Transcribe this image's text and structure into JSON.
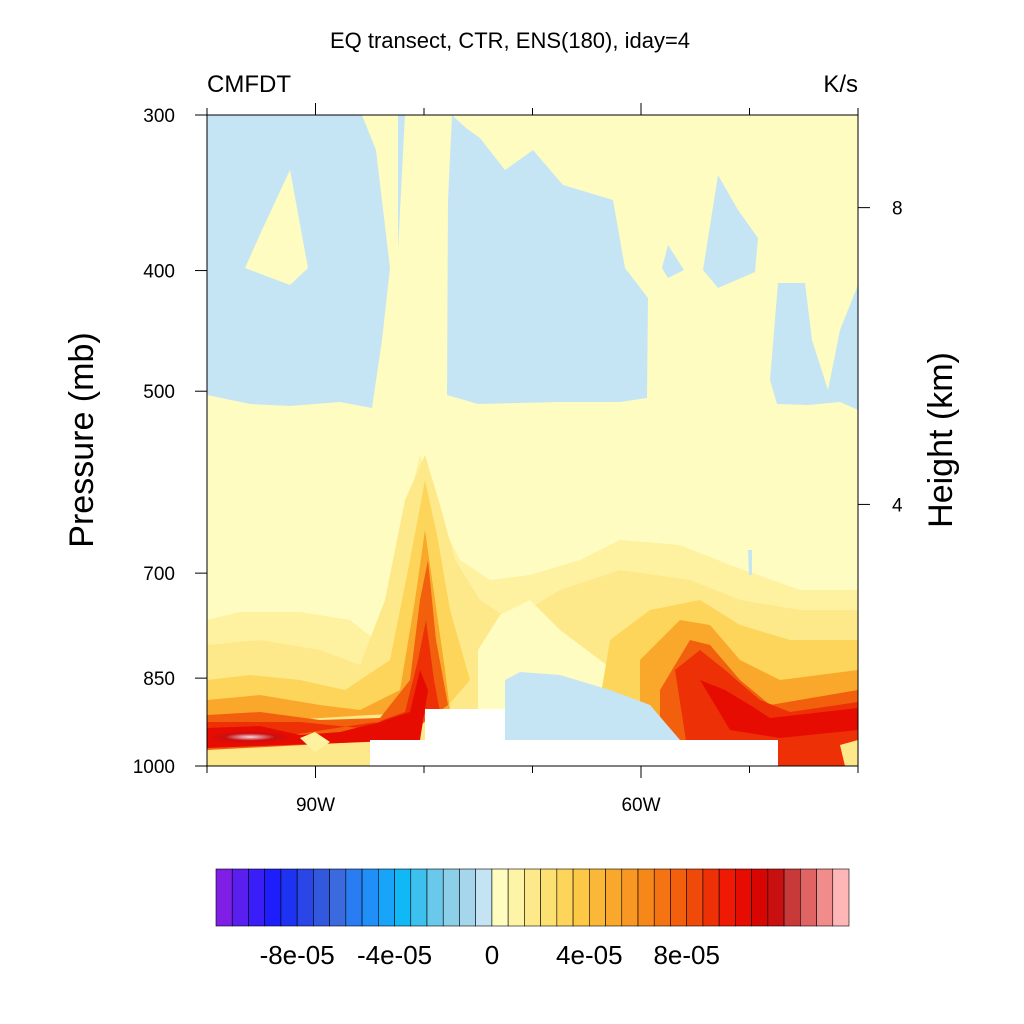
{
  "chart_data": {
    "type": "heatmap",
    "title": "EQ transect, CTR, ENS(180), iday=4",
    "left_label": "CMFDT",
    "right_label": "K/s",
    "ylabel": "Pressure (mb)",
    "ylabel_right": "Height (km)",
    "xlabel": "",
    "x_ticks": [
      {
        "value": -90,
        "label": "90W"
      },
      {
        "value": -60,
        "label": "60W"
      }
    ],
    "xlim": [
      -100,
      -40
    ],
    "y_ticks": [
      {
        "value": 300,
        "label": "300"
      },
      {
        "value": 400,
        "label": "400"
      },
      {
        "value": 500,
        "label": "500"
      },
      {
        "value": 700,
        "label": "700"
      },
      {
        "value": 850,
        "label": "850"
      },
      {
        "value": 1000,
        "label": "1000"
      }
    ],
    "ylim": [
      1000,
      300
    ],
    "y_scale": "log",
    "y_right_ticks": [
      {
        "value": 8,
        "label": "8"
      },
      {
        "value": 4,
        "label": "4"
      }
    ],
    "colorbar": {
      "tick_labels": [
        {
          "value": -8e-05,
          "label": "-8e-05"
        },
        {
          "value": -4e-05,
          "label": "-4e-05"
        },
        {
          "value": 0,
          "label": "0"
        },
        {
          "value": 4e-05,
          "label": "4e-05"
        },
        {
          "value": 8e-05,
          "label": "8e-05"
        }
      ],
      "colors": [
        "#7f1fe6",
        "#5a1fee",
        "#3a1ef8",
        "#1e1efc",
        "#1e32f2",
        "#2a46e6",
        "#3258de",
        "#3a6ade",
        "#2a7cf2",
        "#2090f8",
        "#18a4f8",
        "#10b8f6",
        "#3cc0ee",
        "#6ac8ea",
        "#8ccfe8",
        "#a6d6ec",
        "#c4e4f4",
        "#fffcc0",
        "#fef4a6",
        "#fde98a",
        "#fde072",
        "#fdd55a",
        "#fdc846",
        "#fbb838",
        "#f9a82c",
        "#f89822",
        "#f6881a",
        "#f47414",
        "#f2600e",
        "#f04a0a",
        "#ee3006",
        "#f01a04",
        "#e60c02",
        "#d80602",
        "#c81010",
        "#c83a3a",
        "#e06464",
        "#f08c8c",
        "#ffb6b6"
      ]
    },
    "field_description_colors": {
      "background_weak_positive": "#fefcc0",
      "weak_negative": "#c6e5f4",
      "missing": "#ffffff"
    }
  }
}
